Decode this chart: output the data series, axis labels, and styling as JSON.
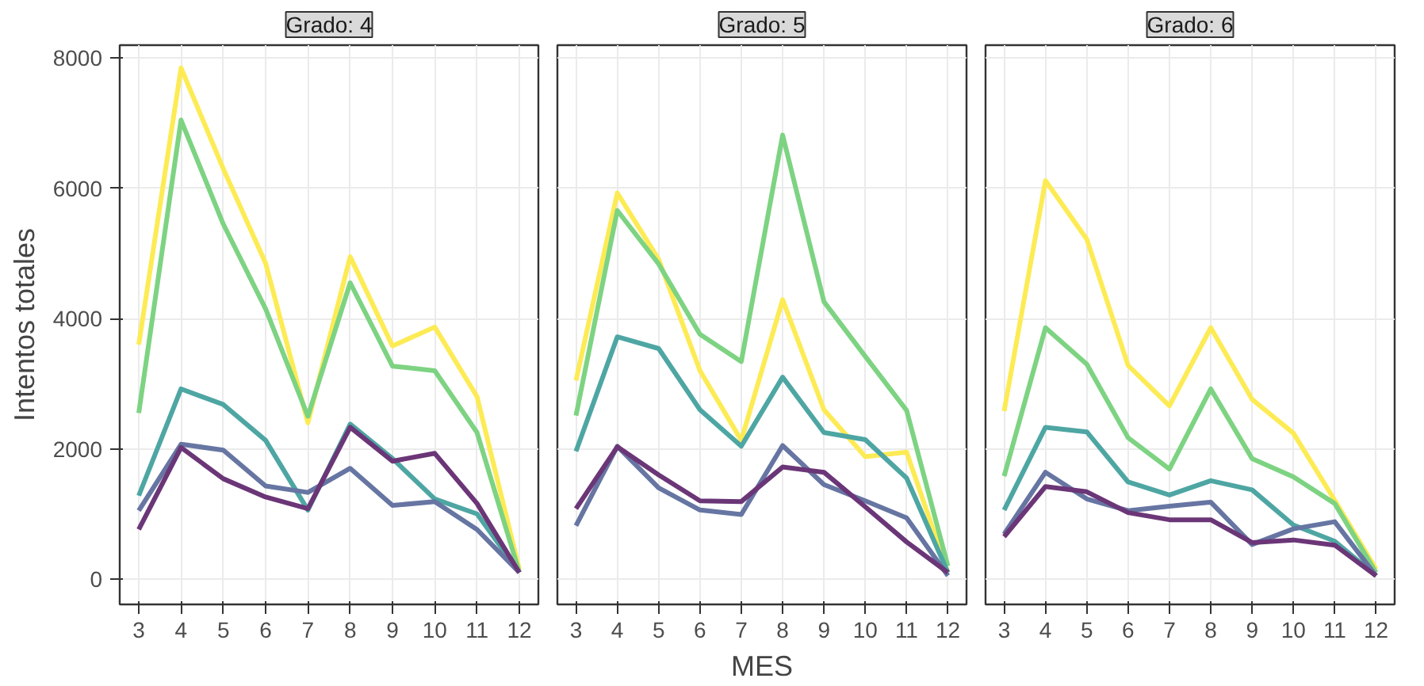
{
  "chart_data": [
    {
      "type": "line",
      "title": "Grado: 4",
      "ylabel": "Intentos totales",
      "x": [
        3,
        4,
        5,
        6,
        7,
        8,
        9,
        10,
        11,
        12
      ],
      "xlim": [
        2.55,
        12.45
      ],
      "xticks": [
        3,
        4,
        5,
        6,
        7,
        8,
        9,
        10,
        11,
        12
      ],
      "ylim": [
        -390,
        8200
      ],
      "yticks": [
        0,
        2000,
        4000,
        6000,
        8000
      ],
      "grid": true,
      "series": [
        {
          "color": "#fdeb55",
          "values": [
            3600,
            7850,
            6300,
            4850,
            2400,
            4950,
            3580,
            3870,
            2800,
            150
          ]
        },
        {
          "color": "#7dd382",
          "values": [
            2550,
            7050,
            5450,
            4150,
            2500,
            4550,
            3270,
            3200,
            2250,
            100
          ]
        },
        {
          "color": "#4ea6a3",
          "values": [
            1280,
            2920,
            2680,
            2130,
            1060,
            2380,
            1850,
            1230,
            1000,
            100
          ]
        },
        {
          "color": "#6675a2",
          "values": [
            1050,
            2070,
            1980,
            1430,
            1330,
            1700,
            1130,
            1190,
            760,
            100
          ]
        },
        {
          "color": "#6b3677",
          "values": [
            760,
            2020,
            1540,
            1260,
            1080,
            2330,
            1810,
            1930,
            1160,
            100
          ]
        }
      ]
    },
    {
      "type": "line",
      "title": "Grado: 5",
      "xlabel": "MES",
      "x": [
        3,
        4,
        5,
        6,
        7,
        8,
        9,
        10,
        11,
        12
      ],
      "xlim": [
        2.55,
        12.45
      ],
      "xticks": [
        3,
        4,
        5,
        6,
        7,
        8,
        9,
        10,
        11,
        12
      ],
      "ylim": [
        -390,
        8200
      ],
      "yticks": [
        0,
        2000,
        4000,
        6000,
        8000
      ],
      "tick_labels": "x",
      "grid": true,
      "series": [
        {
          "color": "#fdeb55",
          "values": [
            3050,
            5930,
            4910,
            3200,
            2130,
            4290,
            2600,
            1880,
            1950,
            100
          ]
        },
        {
          "color": "#7dd382",
          "values": [
            2510,
            5660,
            4840,
            3760,
            3340,
            6820,
            4260,
            3420,
            2590,
            200
          ]
        },
        {
          "color": "#4ea6a3",
          "values": [
            1960,
            3720,
            3540,
            2600,
            2040,
            3100,
            2250,
            2140,
            1550,
            100
          ]
        },
        {
          "color": "#6675a2",
          "values": [
            820,
            2040,
            1400,
            1060,
            990,
            2050,
            1450,
            1200,
            940,
            50
          ]
        },
        {
          "color": "#6b3677",
          "values": [
            1080,
            2030,
            1600,
            1200,
            1190,
            1720,
            1640,
            1110,
            570,
            100
          ]
        }
      ]
    },
    {
      "type": "line",
      "title": "Grado: 6",
      "x": [
        3,
        4,
        5,
        6,
        7,
        8,
        9,
        10,
        11,
        12
      ],
      "xlim": [
        2.55,
        12.45
      ],
      "xticks": [
        3,
        4,
        5,
        6,
        7,
        8,
        9,
        10,
        11,
        12
      ],
      "ylim": [
        -390,
        8200
      ],
      "yticks": [
        0,
        2000,
        4000,
        6000,
        8000
      ],
      "tick_labels": "x",
      "grid": true,
      "series": [
        {
          "color": "#fdeb55",
          "values": [
            2580,
            6120,
            5220,
            3280,
            2660,
            3860,
            2760,
            2240,
            1210,
            150
          ]
        },
        {
          "color": "#7dd382",
          "values": [
            1580,
            3860,
            3300,
            2170,
            1690,
            2920,
            1850,
            1570,
            1160,
            100
          ]
        },
        {
          "color": "#4ea6a3",
          "values": [
            1060,
            2330,
            2260,
            1490,
            1290,
            1510,
            1370,
            830,
            580,
            50
          ]
        },
        {
          "color": "#6675a2",
          "values": [
            690,
            1640,
            1230,
            1050,
            1120,
            1180,
            530,
            770,
            880,
            50
          ]
        },
        {
          "color": "#6b3677",
          "values": [
            650,
            1420,
            1340,
            1020,
            910,
            910,
            560,
            600,
            520,
            50
          ]
        }
      ]
    }
  ]
}
